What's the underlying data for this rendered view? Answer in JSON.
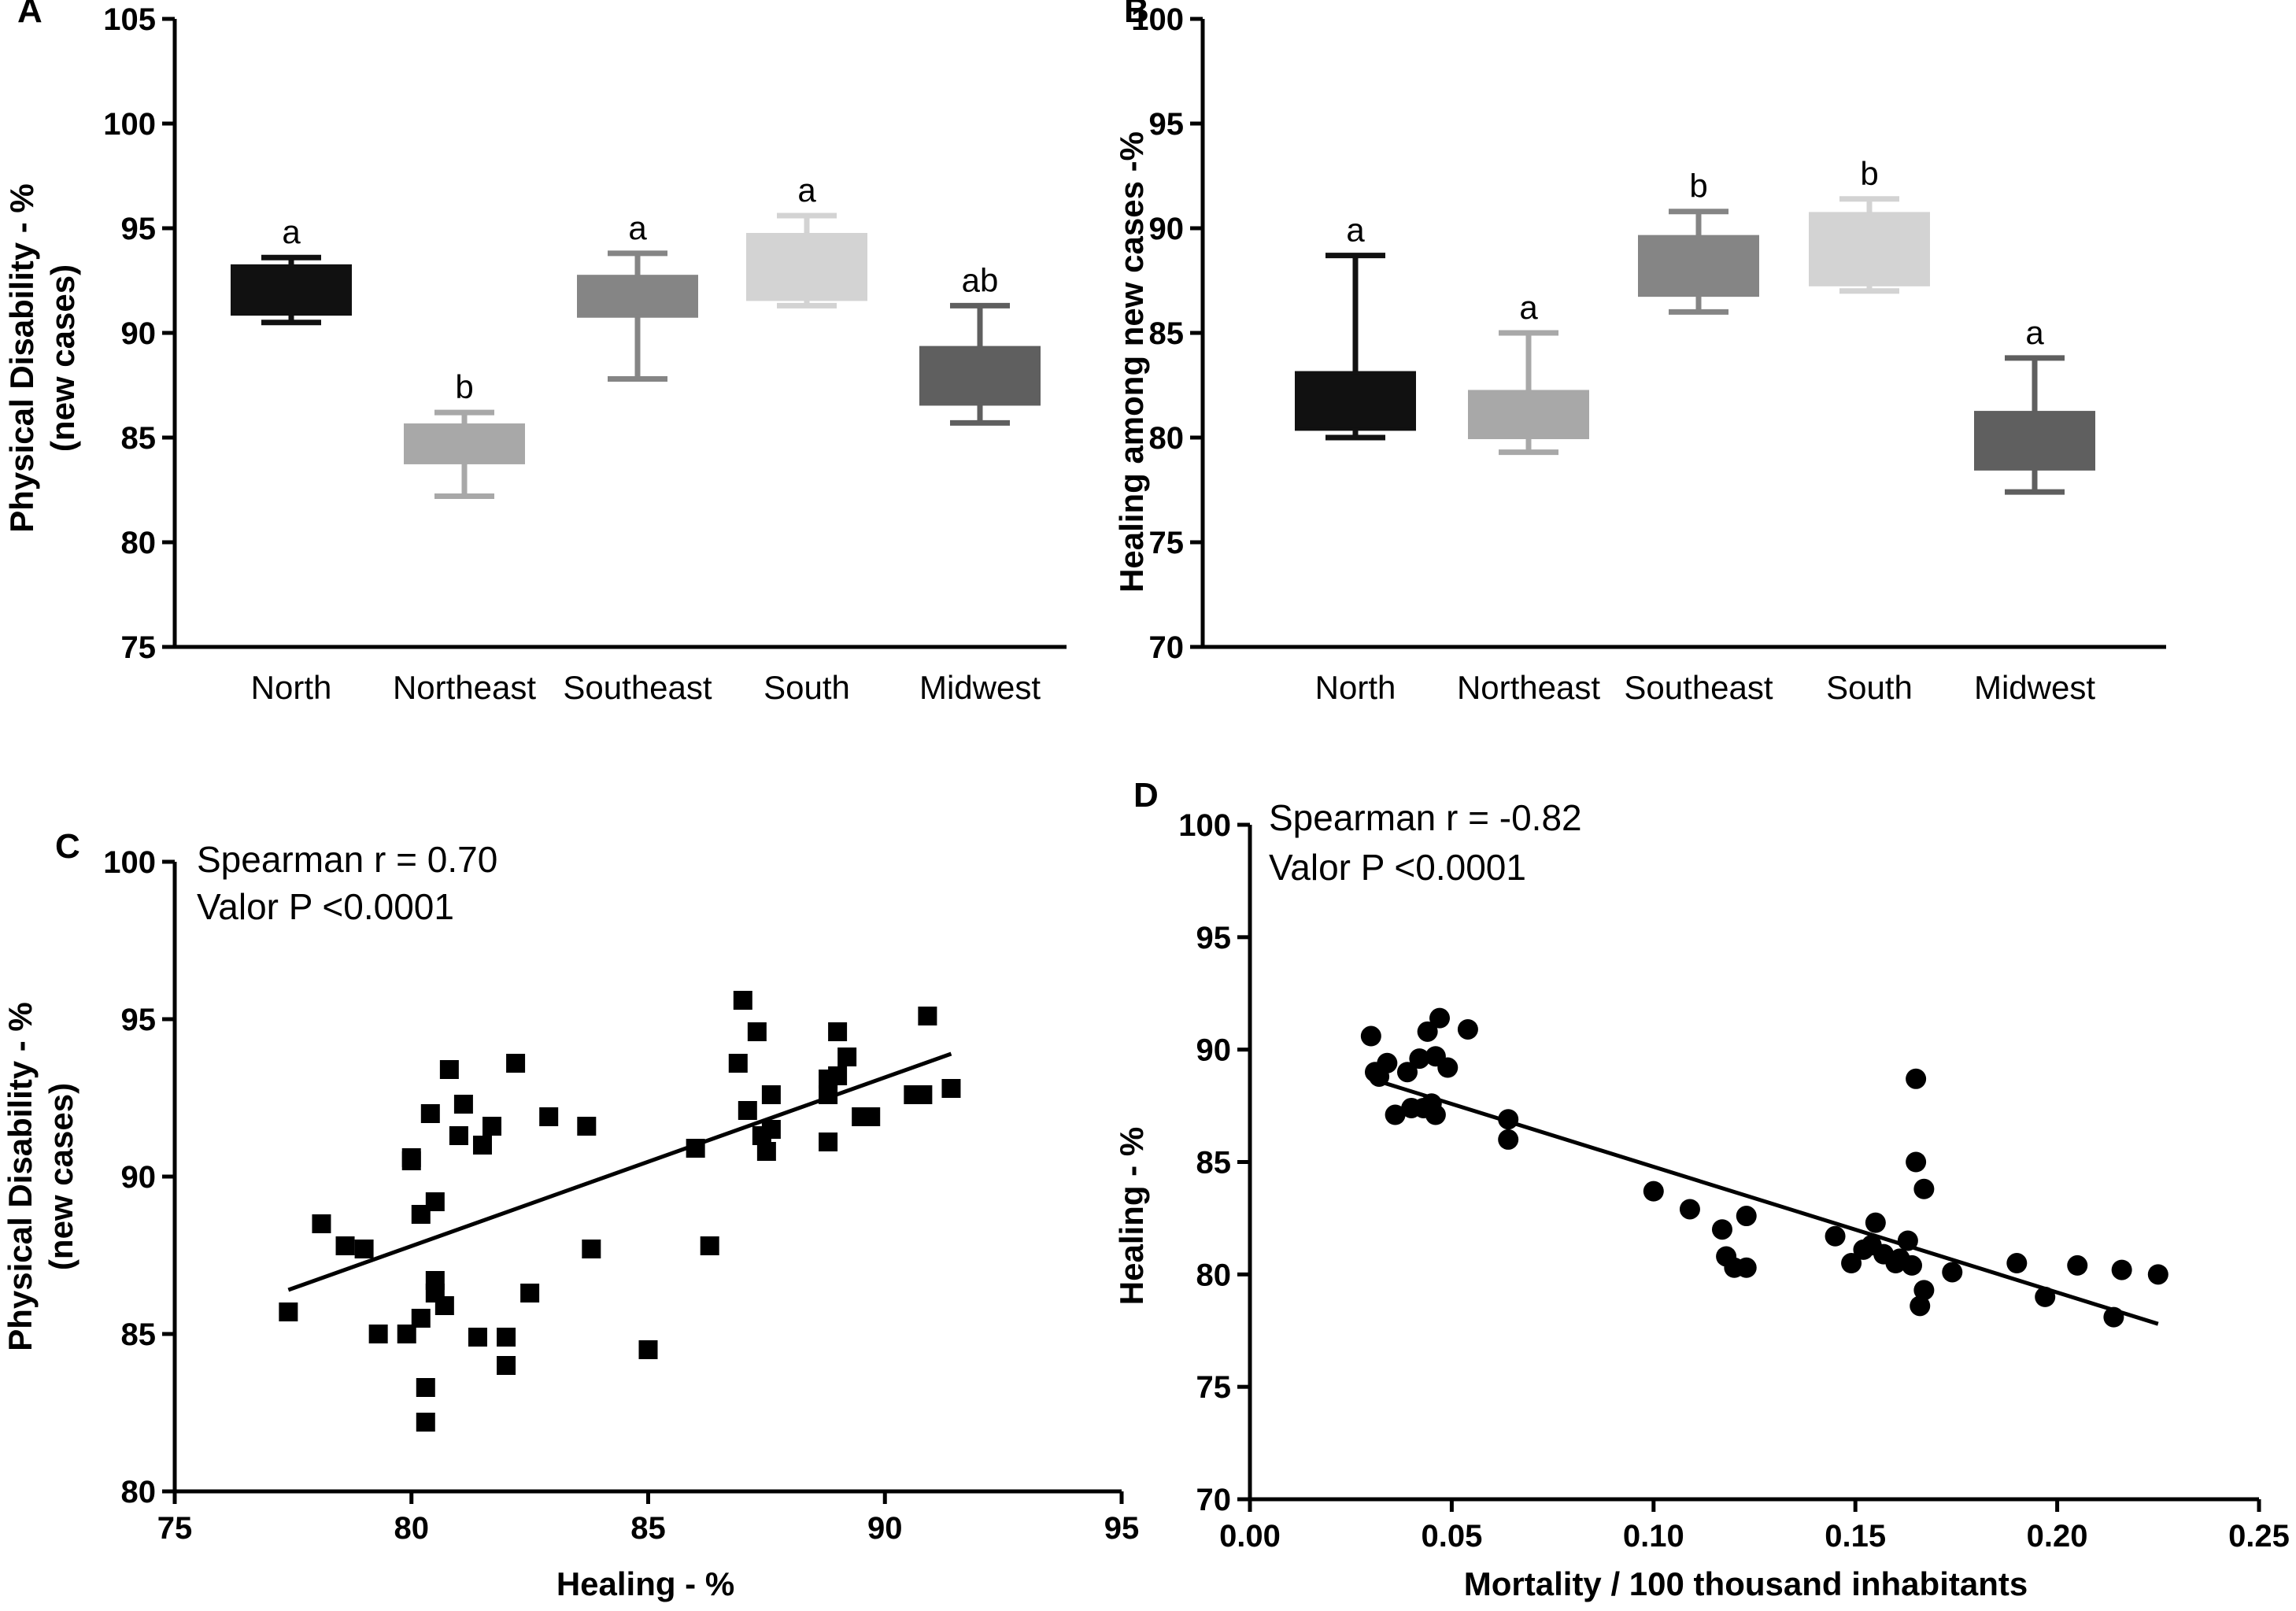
{
  "chart_data": [
    {
      "panel": "A",
      "type": "box",
      "ylabel_line1": "Physical Disability - %",
      "ylabel_line2": "(new cases)",
      "ylim": [
        75,
        105
      ],
      "yticks": [
        75,
        80,
        85,
        90,
        95,
        100,
        105
      ],
      "categories": [
        "North",
        "Northeast",
        "Southeast",
        "South",
        "Midwest"
      ],
      "boxes": [
        {
          "category": "North",
          "min": 90.5,
          "q1": 90.9,
          "median": 92.0,
          "q3": 93.2,
          "max": 93.6,
          "letter": "a",
          "color": "#111111"
        },
        {
          "category": "Northeast",
          "min": 82.2,
          "q1": 83.8,
          "median": 84.7,
          "q3": 85.6,
          "max": 86.2,
          "letter": "b",
          "color": "#a8a8a8"
        },
        {
          "category": "Southeast",
          "min": 87.8,
          "q1": 90.8,
          "median": 91.5,
          "q3": 92.7,
          "max": 93.8,
          "letter": "a",
          "color": "#858585"
        },
        {
          "category": "South",
          "min": 91.3,
          "q1": 91.6,
          "median": 92.5,
          "q3": 94.7,
          "max": 95.6,
          "letter": "a",
          "color": "#d3d3d3"
        },
        {
          "category": "Midwest",
          "min": 85.7,
          "q1": 86.6,
          "median": 87.7,
          "q3": 89.3,
          "max": 91.3,
          "letter": "ab",
          "color": "#5f5f5f"
        }
      ]
    },
    {
      "panel": "B",
      "type": "box",
      "ylabel": "Healing among new cases -%",
      "ylim": [
        70,
        100
      ],
      "yticks": [
        70,
        75,
        80,
        85,
        90,
        95,
        100
      ],
      "categories": [
        "North",
        "Northeast",
        "Southeast",
        "South",
        "Midwest"
      ],
      "boxes": [
        {
          "category": "North",
          "min": 80.0,
          "q1": 80.4,
          "median": 80.9,
          "q3": 83.1,
          "max": 88.7,
          "letter": "a",
          "color": "#111111"
        },
        {
          "category": "Northeast",
          "min": 79.3,
          "q1": 80.0,
          "median": 80.6,
          "q3": 82.2,
          "max": 85.0,
          "letter": "a",
          "color": "#a8a8a8"
        },
        {
          "category": "Southeast",
          "min": 86.0,
          "q1": 86.8,
          "median": 87.6,
          "q3": 89.6,
          "max": 90.8,
          "letter": "b",
          "color": "#858585"
        },
        {
          "category": "South",
          "min": 87.0,
          "q1": 87.3,
          "median": 88.4,
          "q3": 90.7,
          "max": 91.4,
          "letter": "b",
          "color": "#d3d3d3"
        },
        {
          "category": "Midwest",
          "min": 77.4,
          "q1": 78.5,
          "median": 79.9,
          "q3": 81.2,
          "max": 83.8,
          "letter": "a",
          "color": "#5f5f5f"
        }
      ]
    },
    {
      "panel": "C",
      "type": "scatter",
      "marker": "square",
      "xlabel": "Healing - %",
      "ylabel_line1": "Physical Disability - %",
      "ylabel_line2": "(new cases)",
      "xlim": [
        75,
        95
      ],
      "ylim": [
        80,
        100
      ],
      "xticks": [
        75,
        80,
        85,
        90,
        95
      ],
      "yticks": [
        80,
        85,
        90,
        95,
        100
      ],
      "annotation_line1": "Spearman r = 0.70",
      "annotation_line2": "Valor P <0.0001",
      "regression": {
        "x0": 77.4,
        "y0": 86.4,
        "x1": 91.4,
        "y1": 93.9
      },
      "points": [
        [
          77.4,
          85.7
        ],
        [
          78.1,
          88.5
        ],
        [
          78.6,
          87.8
        ],
        [
          79.0,
          87.7
        ],
        [
          79.3,
          85.0
        ],
        [
          79.9,
          85.0
        ],
        [
          80.0,
          90.6
        ],
        [
          80.0,
          90.5
        ],
        [
          80.2,
          85.5
        ],
        [
          80.2,
          88.8
        ],
        [
          80.3,
          83.3
        ],
        [
          80.3,
          82.2
        ],
        [
          80.4,
          92.0
        ],
        [
          80.5,
          89.2
        ],
        [
          80.5,
          86.7
        ],
        [
          80.5,
          86.3
        ],
        [
          80.7,
          85.9
        ],
        [
          80.8,
          93.4
        ],
        [
          81.0,
          91.3
        ],
        [
          81.1,
          92.3
        ],
        [
          81.4,
          84.9
        ],
        [
          81.5,
          91.0
        ],
        [
          81.7,
          91.6
        ],
        [
          82.0,
          84.9
        ],
        [
          82.0,
          84.0
        ],
        [
          82.2,
          93.6
        ],
        [
          82.5,
          86.3
        ],
        [
          82.9,
          91.9
        ],
        [
          83.7,
          91.6
        ],
        [
          83.8,
          87.7
        ],
        [
          85.0,
          84.5
        ],
        [
          86.0,
          90.9
        ],
        [
          86.3,
          87.8
        ],
        [
          86.9,
          93.6
        ],
        [
          87.0,
          95.6
        ],
        [
          87.1,
          92.1
        ],
        [
          87.3,
          94.6
        ],
        [
          87.4,
          91.3
        ],
        [
          87.5,
          90.8
        ],
        [
          87.6,
          92.6
        ],
        [
          87.6,
          91.5
        ],
        [
          88.8,
          91.1
        ],
        [
          88.8,
          92.6
        ],
        [
          88.8,
          93.1
        ],
        [
          89.0,
          93.2
        ],
        [
          89.0,
          94.6
        ],
        [
          89.2,
          93.8
        ],
        [
          89.5,
          91.9
        ],
        [
          89.7,
          91.9
        ],
        [
          90.6,
          92.6
        ],
        [
          90.8,
          92.6
        ],
        [
          90.9,
          95.1
        ],
        [
          91.4,
          92.8
        ]
      ]
    },
    {
      "panel": "D",
      "type": "scatter",
      "marker": "circle",
      "xlabel": "Mortality / 100 thousand inhabitants",
      "ylabel": "Healing - %",
      "xlim": [
        0.0,
        0.25
      ],
      "ylim": [
        70,
        100
      ],
      "xticks": [
        "0.00",
        "0.05",
        "0.10",
        "0.15",
        "0.20",
        "0.25"
      ],
      "yticks": [
        70,
        75,
        80,
        85,
        90,
        95,
        100
      ],
      "annotation_line1": "Spearman r = -0.82",
      "annotation_line2": "Valor P <0.0001",
      "regression": {
        "x0": 0.03,
        "y0": 88.7,
        "x1": 0.225,
        "y1": 77.8
      },
      "points": [
        [
          0.03,
          90.6
        ],
        [
          0.031,
          89.0
        ],
        [
          0.032,
          88.8
        ],
        [
          0.034,
          89.4
        ],
        [
          0.036,
          87.1
        ],
        [
          0.039,
          89.0
        ],
        [
          0.04,
          87.4
        ],
        [
          0.042,
          89.6
        ],
        [
          0.043,
          87.4
        ],
        [
          0.044,
          90.8
        ],
        [
          0.045,
          87.6
        ],
        [
          0.046,
          89.7
        ],
        [
          0.046,
          87.1
        ],
        [
          0.047,
          91.4
        ],
        [
          0.049,
          89.2
        ],
        [
          0.054,
          90.9
        ],
        [
          0.064,
          86.9
        ],
        [
          0.064,
          86.0
        ],
        [
          0.1,
          83.7
        ],
        [
          0.109,
          82.9
        ],
        [
          0.117,
          82.0
        ],
        [
          0.118,
          80.8
        ],
        [
          0.12,
          80.3
        ],
        [
          0.123,
          82.6
        ],
        [
          0.123,
          80.3
        ],
        [
          0.145,
          81.7
        ],
        [
          0.149,
          80.5
        ],
        [
          0.152,
          81.1
        ],
        [
          0.154,
          81.3
        ],
        [
          0.155,
          82.3
        ],
        [
          0.157,
          80.9
        ],
        [
          0.16,
          80.5
        ],
        [
          0.161,
          80.7
        ],
        [
          0.163,
          81.5
        ],
        [
          0.164,
          80.4
        ],
        [
          0.165,
          88.7
        ],
        [
          0.165,
          85.0
        ],
        [
          0.166,
          78.6
        ],
        [
          0.167,
          83.8
        ],
        [
          0.167,
          79.3
        ],
        [
          0.174,
          80.1
        ],
        [
          0.19,
          80.5
        ],
        [
          0.197,
          79.0
        ],
        [
          0.205,
          80.4
        ],
        [
          0.214,
          78.1
        ],
        [
          0.216,
          80.2
        ],
        [
          0.225,
          80.0
        ]
      ]
    }
  ]
}
